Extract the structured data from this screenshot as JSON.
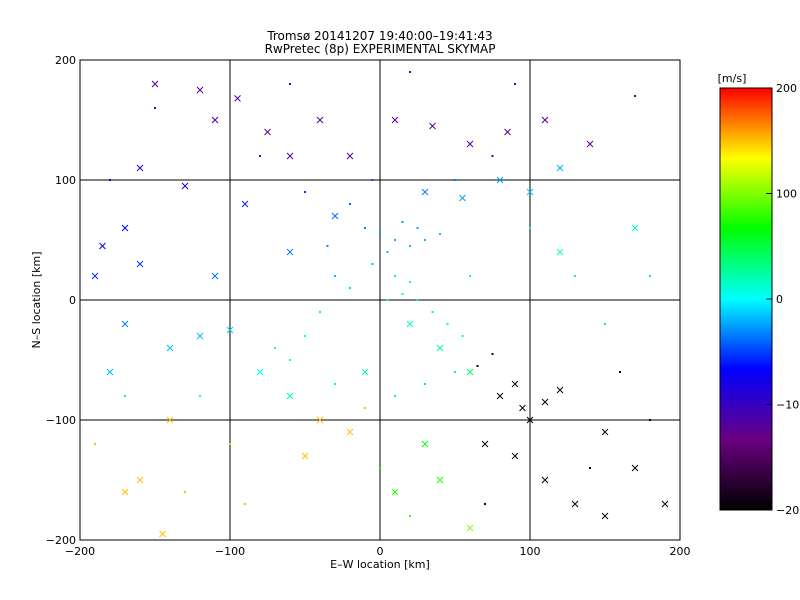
{
  "chart_data": {
    "type": "scatter",
    "title": "Tromsø 20141207 19:40:00–19:41:43",
    "subtitle": "RwPretec (8p) EXPERIMENTAL SKYMAP",
    "xlabel": "E–W location [km]",
    "ylabel": "N–S location [km]",
    "xlim": [
      -200,
      200
    ],
    "ylim": [
      -200,
      200
    ],
    "x_ticks": [
      -200,
      -100,
      0,
      100,
      200
    ],
    "y_ticks": [
      -200,
      -100,
      0,
      100,
      200
    ],
    "x_tick_labels": [
      "−200",
      "−100",
      "0",
      "100",
      "200"
    ],
    "y_tick_labels": [
      "−200",
      "−100",
      "0",
      "100",
      "200"
    ],
    "grid": true,
    "colorbar": {
      "label": "[m/s]",
      "range": [
        -200,
        200
      ],
      "ticks": [
        200,
        100,
        0,
        -100,
        -200
      ],
      "tick_labels": [
        "200",
        "100",
        "0",
        "−100",
        "−200"
      ],
      "colormap": [
        "#000000",
        "#6a0080",
        "#0000ff",
        "#00ffff",
        "#00ff00",
        "#ffff00",
        "#ff0000"
      ]
    },
    "series": [
      {
        "marker": "x",
        "points": [
          [
            -150,
            180
          ],
          [
            -120,
            175
          ],
          [
            -95,
            168
          ],
          [
            -75,
            140
          ],
          [
            -60,
            120
          ],
          [
            -160,
            110
          ],
          [
            -130,
            95
          ],
          [
            -110,
            150
          ],
          [
            -40,
            150
          ],
          [
            -20,
            120
          ],
          [
            10,
            150
          ],
          [
            35,
            145
          ],
          [
            60,
            130
          ],
          [
            85,
            140
          ],
          [
            110,
            150
          ],
          [
            140,
            130
          ],
          [
            30,
            90
          ],
          [
            55,
            85
          ],
          [
            80,
            100
          ],
          [
            100,
            90
          ],
          [
            120,
            110
          ],
          [
            -170,
            60
          ],
          [
            -185,
            45
          ],
          [
            -190,
            20
          ],
          [
            -160,
            30
          ],
          [
            -170,
            -20
          ],
          [
            -180,
            -60
          ],
          [
            -140,
            -40
          ],
          [
            -120,
            -30
          ],
          [
            -100,
            -25
          ],
          [
            -80,
            -60
          ],
          [
            -60,
            -80
          ],
          [
            -40,
            -100
          ],
          [
            -20,
            -110
          ],
          [
            -50,
            -130
          ],
          [
            -140,
            -100
          ],
          [
            -160,
            -150
          ],
          [
            -145,
            -195
          ],
          [
            -170,
            -160
          ],
          [
            20,
            -20
          ],
          [
            40,
            -40
          ],
          [
            60,
            -60
          ],
          [
            80,
            -80
          ],
          [
            90,
            -70
          ],
          [
            95,
            -90
          ],
          [
            100,
            -100
          ],
          [
            110,
            -85
          ],
          [
            120,
            -75
          ],
          [
            70,
            -120
          ],
          [
            90,
            -130
          ],
          [
            110,
            -150
          ],
          [
            130,
            -170
          ],
          [
            150,
            -180
          ],
          [
            170,
            -140
          ],
          [
            190,
            -170
          ],
          [
            150,
            -110
          ],
          [
            40,
            -150
          ],
          [
            10,
            -160
          ],
          [
            60,
            -190
          ],
          [
            120,
            40
          ],
          [
            170,
            60
          ],
          [
            -60,
            40
          ],
          [
            -90,
            80
          ],
          [
            -110,
            20
          ],
          [
            -30,
            70
          ],
          [
            -10,
            -60
          ],
          [
            30,
            -120
          ]
        ]
      },
      {
        "marker": "dot",
        "points": [
          [
            -10,
            60
          ],
          [
            0,
            55
          ],
          [
            10,
            50
          ],
          [
            20,
            45
          ],
          [
            30,
            50
          ],
          [
            40,
            55
          ],
          [
            15,
            65
          ],
          [
            25,
            60
          ],
          [
            5,
            40
          ],
          [
            -5,
            30
          ],
          [
            10,
            20
          ],
          [
            20,
            15
          ],
          [
            15,
            5
          ],
          [
            5,
            0
          ],
          [
            25,
            0
          ],
          [
            35,
            -10
          ],
          [
            45,
            -20
          ],
          [
            55,
            -30
          ],
          [
            -20,
            10
          ],
          [
            -30,
            20
          ],
          [
            -40,
            -10
          ],
          [
            -50,
            -30
          ],
          [
            -60,
            -50
          ],
          [
            -70,
            -40
          ],
          [
            -30,
            -70
          ],
          [
            -10,
            -90
          ],
          [
            10,
            -80
          ],
          [
            30,
            -70
          ],
          [
            50,
            -60
          ],
          [
            65,
            -55
          ],
          [
            75,
            -45
          ],
          [
            -80,
            120
          ],
          [
            -50,
            90
          ],
          [
            -20,
            80
          ],
          [
            50,
            100
          ],
          [
            75,
            120
          ],
          [
            100,
            60
          ],
          [
            130,
            20
          ],
          [
            150,
            -20
          ],
          [
            160,
            -60
          ],
          [
            -120,
            -80
          ],
          [
            -100,
            -120
          ],
          [
            -130,
            -160
          ],
          [
            -90,
            -170
          ],
          [
            0,
            -140
          ],
          [
            20,
            -180
          ],
          [
            70,
            -170
          ],
          [
            140,
            -140
          ],
          [
            180,
            -100
          ],
          [
            -180,
            100
          ],
          [
            -150,
            160
          ],
          [
            -60,
            180
          ],
          [
            20,
            190
          ],
          [
            90,
            180
          ],
          [
            170,
            170
          ],
          [
            -190,
            -120
          ],
          [
            -170,
            -80
          ],
          [
            180,
            20
          ],
          [
            60,
            20
          ],
          [
            -5,
            100
          ],
          [
            -35,
            45
          ]
        ]
      }
    ]
  }
}
